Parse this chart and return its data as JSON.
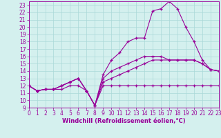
{
  "xlabel": "Windchill (Refroidissement éolien,°C)",
  "x": [
    0,
    1,
    2,
    3,
    4,
    5,
    6,
    7,
    8,
    9,
    10,
    11,
    12,
    13,
    14,
    15,
    16,
    17,
    18,
    19,
    20,
    21,
    22,
    23
  ],
  "line1": [
    12,
    11.3,
    11.5,
    11.5,
    11.5,
    12,
    12,
    11.3,
    9.3,
    12,
    12,
    12,
    12,
    12,
    12,
    12,
    12,
    12,
    12,
    12,
    12,
    12,
    12,
    12
  ],
  "line2": [
    12,
    11.3,
    11.5,
    11.5,
    12,
    12.5,
    13,
    11.3,
    9.3,
    12.5,
    13,
    13.5,
    14,
    14.5,
    15,
    15.5,
    15.5,
    15.5,
    15.5,
    15.5,
    15.5,
    15,
    14.2,
    14
  ],
  "line3": [
    12,
    11.3,
    11.5,
    11.5,
    12,
    12.5,
    13,
    11.3,
    9.3,
    13,
    14,
    14.5,
    15,
    15.5,
    16,
    16,
    16,
    15.5,
    15.5,
    15.5,
    15.5,
    15,
    14.2,
    14
  ],
  "line4": [
    12,
    11.3,
    11.5,
    11.5,
    12,
    12.5,
    13,
    11.3,
    9.3,
    13.5,
    15.5,
    16.5,
    18,
    18.5,
    18.5,
    22.2,
    22.5,
    23.5,
    22.5,
    20,
    18,
    15.5,
    14.2,
    14
  ],
  "line_color": "#990099",
  "bg_color": "#d4f0ee",
  "grid_color": "#aad8d8",
  "ylim": [
    9,
    23.5
  ],
  "xlim": [
    0,
    23
  ],
  "yticks": [
    9,
    10,
    11,
    12,
    13,
    14,
    15,
    16,
    17,
    18,
    19,
    20,
    21,
    22,
    23
  ],
  "xticks": [
    0,
    1,
    2,
    3,
    4,
    5,
    6,
    7,
    8,
    9,
    10,
    11,
    12,
    13,
    14,
    15,
    16,
    17,
    18,
    19,
    20,
    21,
    22,
    23
  ],
  "tick_fontsize": 5.5,
  "xlabel_fontsize": 6.0,
  "marker_size": 3.5,
  "linewidth": 0.8
}
